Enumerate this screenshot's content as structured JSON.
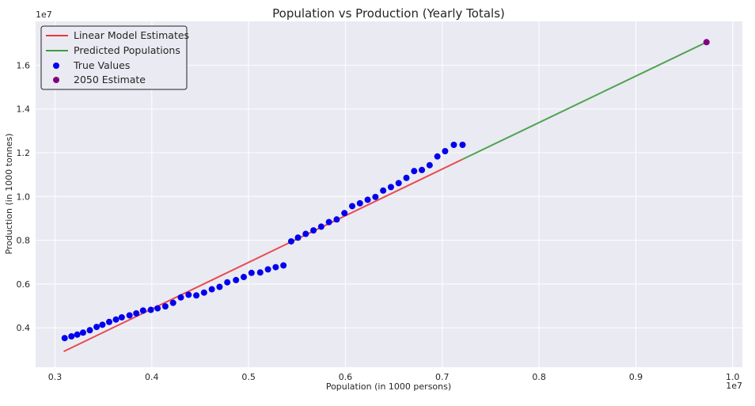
{
  "chart_data": {
    "type": "scatter",
    "title": "Population vs Production (Yearly Totals)",
    "xlabel": "Population (in 1000 persons)",
    "ylabel": "Production (in 1000 tonnes)",
    "x_offset_label": "1e7",
    "y_offset_label": "1e7",
    "xlim": [
      0.28,
      1.01
    ],
    "ylim": [
      0.22,
      1.8
    ],
    "x_ticks": [
      0.3,
      0.4,
      0.5,
      0.6,
      0.7,
      0.8,
      0.9,
      1.0
    ],
    "x_tick_labels": [
      "0.3",
      "0.4",
      "0.5",
      "0.6",
      "0.7",
      "0.8",
      "0.9",
      "1.0"
    ],
    "y_ticks": [
      0.4,
      0.6,
      0.8,
      1.0,
      1.2,
      1.4,
      1.6
    ],
    "y_tick_labels": [
      "0.4",
      "0.6",
      "0.8",
      "1.0",
      "1.2",
      "1.4",
      "1.6"
    ],
    "grid": true,
    "legend_position": "top-left",
    "series": [
      {
        "name": "Linear Model Estimates",
        "kind": "line",
        "color": "#e8393c",
        "x": [
          0.309,
          0.721
        ],
        "y": [
          0.292,
          1.17
        ]
      },
      {
        "name": "Predicted Populations",
        "kind": "line",
        "color": "#3f9b3f",
        "x": [
          0.721,
          0.973
        ],
        "y": [
          1.17,
          1.705
        ]
      },
      {
        "name": "True Values",
        "kind": "scatter",
        "color": "#0000ee",
        "x": [
          0.31,
          0.317,
          0.323,
          0.329,
          0.336,
          0.343,
          0.349,
          0.356,
          0.363,
          0.369,
          0.377,
          0.384,
          0.391,
          0.399,
          0.406,
          0.414,
          0.422,
          0.43,
          0.438,
          0.446,
          0.454,
          0.462,
          0.47,
          0.478,
          0.487,
          0.495,
          0.503,
          0.512,
          0.52,
          0.528,
          0.536,
          0.544,
          0.551,
          0.559,
          0.567,
          0.575,
          0.583,
          0.591,
          0.599,
          0.607,
          0.615,
          0.623,
          0.631,
          0.639,
          0.647,
          0.655,
          0.663,
          0.671,
          0.679,
          0.687,
          0.695,
          0.703,
          0.712,
          0.721
        ],
        "y": [
          0.353,
          0.361,
          0.369,
          0.378,
          0.389,
          0.404,
          0.414,
          0.427,
          0.438,
          0.448,
          0.457,
          0.466,
          0.479,
          0.482,
          0.489,
          0.498,
          0.514,
          0.539,
          0.551,
          0.548,
          0.561,
          0.576,
          0.587,
          0.608,
          0.618,
          0.632,
          0.651,
          0.653,
          0.667,
          0.677,
          0.685,
          0.795,
          0.812,
          0.829,
          0.845,
          0.862,
          0.883,
          0.895,
          0.924,
          0.956,
          0.969,
          0.985,
          0.998,
          1.027,
          1.043,
          1.061,
          1.085,
          1.116,
          1.121,
          1.143,
          1.183,
          1.207,
          1.236,
          1.236
        ]
      },
      {
        "name": "2050 Estimate",
        "kind": "scatter",
        "color": "#800080",
        "x": [
          0.973
        ],
        "y": [
          1.705
        ]
      }
    ]
  }
}
